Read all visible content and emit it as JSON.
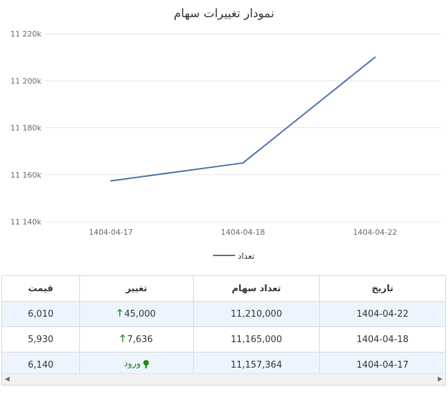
{
  "chart_data": {
    "type": "line",
    "title": "نمودار تغییرات سهام",
    "categories": [
      "1404-04-17",
      "1404-04-18",
      "1404-04-22"
    ],
    "series": [
      {
        "name": "تعداد",
        "values": [
          11157364,
          11165000,
          11210000
        ],
        "color": "#4a6fa0"
      }
    ],
    "ylim": [
      11140000,
      11220000
    ],
    "yticks": [
      11140000,
      11160000,
      11180000,
      11200000,
      11220000
    ],
    "ytick_labels": [
      "11 140k",
      "11 160k",
      "11 180k",
      "11 200k",
      "11 220k"
    ],
    "grid": true,
    "legend_position": "bottom"
  },
  "table": {
    "headers": {
      "date": "تاریخ",
      "shares": "تعداد سهام",
      "change": "تغییر",
      "price": "قیمت"
    },
    "rows": [
      {
        "date": "1404-04-22",
        "shares": "11,210,000",
        "change": "45,000",
        "change_type": "up",
        "price": "6,010"
      },
      {
        "date": "1404-04-18",
        "shares": "11,165,000",
        "change": "7,636",
        "change_type": "up",
        "price": "5,930"
      },
      {
        "date": "1404-04-17",
        "shares": "11,157,364",
        "change": "ورود",
        "change_type": "entry",
        "price": "6,140"
      }
    ]
  },
  "scrollbar": {
    "left_icon": "triangle-left-icon",
    "right_icon": "triangle-right-icon"
  },
  "colors": {
    "line": "#4a6fa0",
    "grid": "#e6e6e6",
    "up": "#1a8a1a",
    "row_alt": "#eef4fd"
  }
}
